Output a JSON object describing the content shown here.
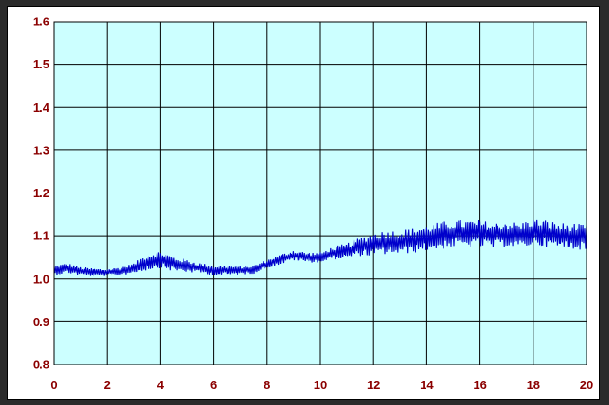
{
  "chart_data": {
    "type": "line",
    "title": "",
    "xlabel": "",
    "ylabel": "",
    "xlim": [
      0,
      20
    ],
    "ylim": [
      0.8,
      1.6
    ],
    "x_ticks": [
      0,
      2,
      4,
      6,
      8,
      10,
      12,
      14,
      16,
      18,
      20
    ],
    "y_ticks": [
      0.8,
      0.9,
      1.0,
      1.1,
      1.2,
      1.3,
      1.4,
      1.5,
      1.6
    ],
    "x_tick_labels": [
      "0",
      "2",
      "4",
      "6",
      "8",
      "10",
      "12",
      "14",
      "16",
      "18",
      "20"
    ],
    "y_tick_labels": [
      "0.8",
      "0.9",
      "1.0",
      "1.1",
      "1.2",
      "1.3",
      "1.4",
      "1.5",
      "1.6"
    ],
    "grid": true,
    "plot_background": "#ccffff",
    "line_color": "#0000cc",
    "tick_label_color": "#8b0000",
    "series": [
      {
        "x": [
          0,
          0.5,
          1,
          1.5,
          2,
          2.5,
          3,
          3.5,
          4,
          4.5,
          5,
          5.5,
          6,
          6.5,
          7,
          7.5,
          8,
          8.5,
          9,
          9.5,
          10,
          10.5,
          11,
          11.5,
          12,
          12.5,
          13,
          13.5,
          14,
          14.5,
          15,
          15.5,
          16,
          16.5,
          17,
          17.5,
          18,
          18.5,
          19,
          19.5,
          20
        ],
        "values": [
          1.02,
          1.025,
          1.018,
          1.015,
          1.015,
          1.018,
          1.025,
          1.04,
          1.045,
          1.035,
          1.03,
          1.025,
          1.02,
          1.02,
          1.02,
          1.022,
          1.035,
          1.045,
          1.055,
          1.05,
          1.05,
          1.06,
          1.065,
          1.075,
          1.08,
          1.085,
          1.085,
          1.09,
          1.095,
          1.1,
          1.105,
          1.105,
          1.105,
          1.1,
          1.105,
          1.1,
          1.11,
          1.105,
          1.1,
          1.1,
          1.095
        ],
        "noise_amplitude": [
          0.012,
          0.012,
          0.01,
          0.01,
          0.008,
          0.01,
          0.012,
          0.02,
          0.02,
          0.018,
          0.015,
          0.012,
          0.012,
          0.012,
          0.01,
          0.01,
          0.01,
          0.012,
          0.012,
          0.012,
          0.012,
          0.015,
          0.018,
          0.022,
          0.028,
          0.028,
          0.028,
          0.03,
          0.03,
          0.032,
          0.032,
          0.032,
          0.032,
          0.03,
          0.03,
          0.03,
          0.032,
          0.032,
          0.03,
          0.03,
          0.03
        ]
      }
    ]
  }
}
